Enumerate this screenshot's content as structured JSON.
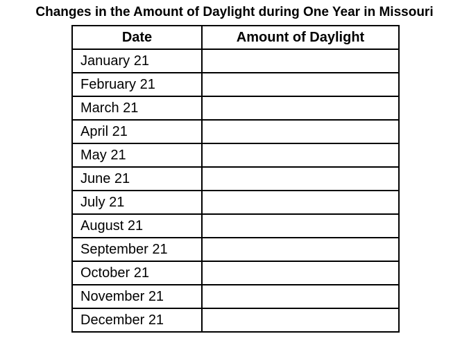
{
  "title": "Changes in the Amount of Daylight during One Year in Missouri",
  "table": {
    "headers": [
      "Date",
      "Amount of Daylight"
    ],
    "rows": [
      {
        "date": "January 21",
        "amount": ""
      },
      {
        "date": "February 21",
        "amount": ""
      },
      {
        "date": "March 21",
        "amount": ""
      },
      {
        "date": "April 21",
        "amount": ""
      },
      {
        "date": "May 21",
        "amount": ""
      },
      {
        "date": "June 21",
        "amount": ""
      },
      {
        "date": "July 21",
        "amount": ""
      },
      {
        "date": "August 21",
        "amount": ""
      },
      {
        "date": "September 21",
        "amount": ""
      },
      {
        "date": "October 21",
        "amount": ""
      },
      {
        "date": "November 21",
        "amount": ""
      },
      {
        "date": "December 21",
        "amount": ""
      }
    ]
  }
}
